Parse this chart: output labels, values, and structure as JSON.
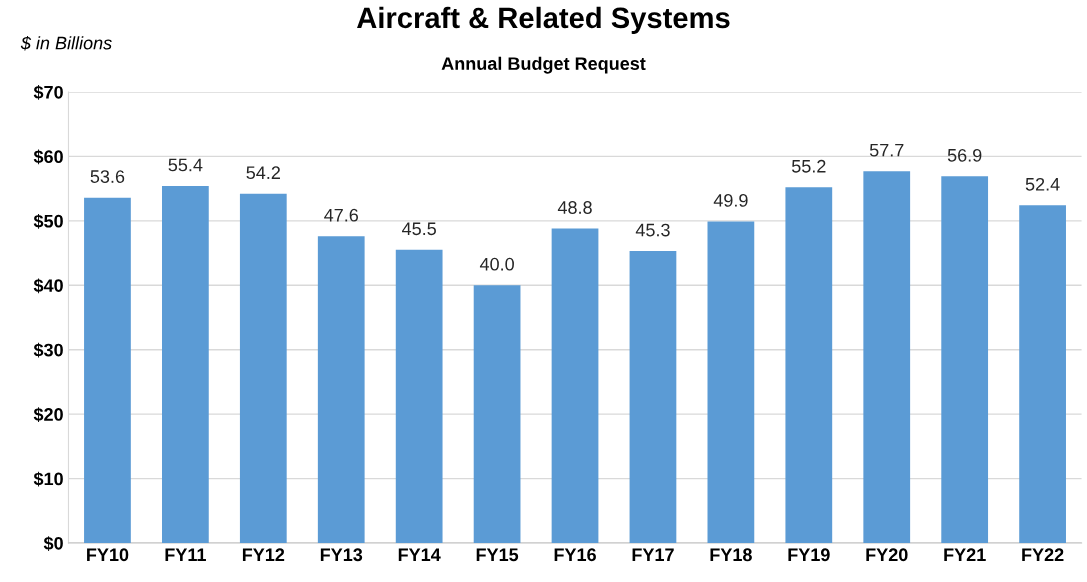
{
  "chart_data": {
    "type": "bar",
    "title": "Aircraft & Related Systems",
    "subtitle": "Annual Budget Request",
    "ylabel": "$ in Billions",
    "categories": [
      "FY10",
      "FY11",
      "FY12",
      "FY13",
      "FY14",
      "FY15",
      "FY16",
      "FY17",
      "FY18",
      "FY19",
      "FY20",
      "FY21",
      "FY22"
    ],
    "values": [
      53.6,
      55.4,
      54.2,
      47.6,
      45.5,
      40.0,
      48.8,
      45.3,
      49.9,
      55.2,
      57.7,
      56.9,
      52.4
    ],
    "color": "#5b9bd5",
    "ylim": [
      0,
      70
    ],
    "yticks": [
      {
        "value": 0,
        "label": "$0"
      },
      {
        "value": 10,
        "label": "$10"
      },
      {
        "value": 20,
        "label": "$20"
      },
      {
        "value": 30,
        "label": "$30"
      },
      {
        "value": 40,
        "label": "$40"
      },
      {
        "value": 50,
        "label": "$50"
      },
      {
        "value": 60,
        "label": "$60"
      },
      {
        "value": 70,
        "label": "$70"
      }
    ],
    "value_labels": [
      "53.6",
      "55.4",
      "54.2",
      "47.6",
      "45.5",
      "40.0",
      "48.8",
      "45.3",
      "49.9",
      "55.2",
      "57.7",
      "56.9",
      "52.4"
    ],
    "grid": "y",
    "legend": false
  }
}
